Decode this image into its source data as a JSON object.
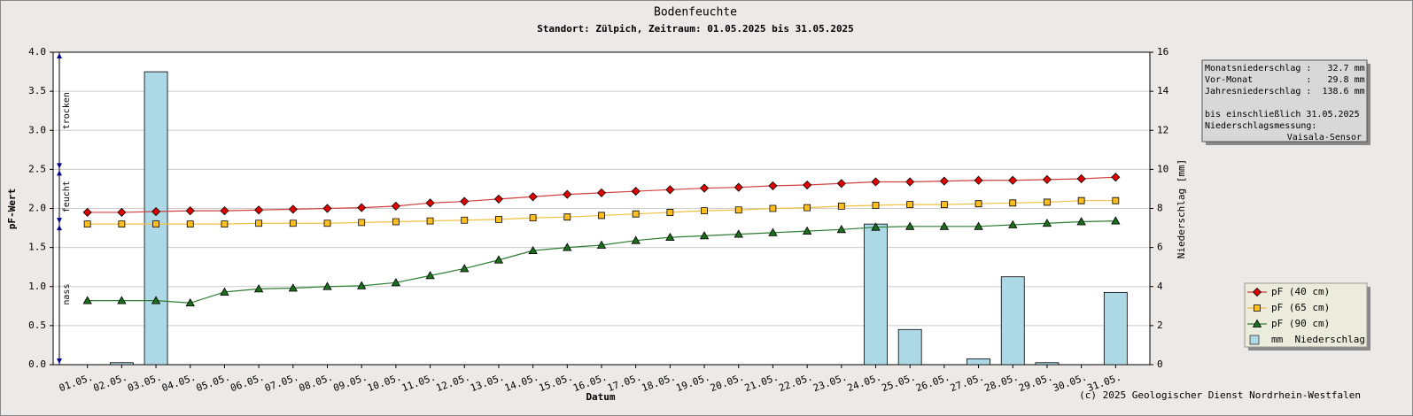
{
  "chart_data": {
    "type": "combo",
    "title": "Bodenfeuchte",
    "subtitle": "Standort: Zülpich, Zeitraum: 01.05.2025 bis 31.05.2025",
    "x_label": "Datum",
    "y_label": "pF-Wert",
    "y2_label": "Niederschlag [mm]",
    "categories": [
      "01.05.",
      "02.05.",
      "03.05.",
      "04.05.",
      "05.05.",
      "06.05.",
      "07.05.",
      "08.05.",
      "09.05.",
      "10.05.",
      "11.05.",
      "12.05.",
      "13.05.",
      "14.05.",
      "15.05.",
      "16.05.",
      "17.05.",
      "18.05.",
      "19.05.",
      "20.05.",
      "21.05.",
      "22.05.",
      "23.05.",
      "24.05.",
      "25.05.",
      "26.05.",
      "27.05.",
      "28.05.",
      "29.05.",
      "30.05.",
      "31.05."
    ],
    "ylim": [
      0,
      4
    ],
    "yticks": [
      {
        "value": 0,
        "label": "0.0"
      },
      0.5,
      {
        "value": 1,
        "label": "1.0"
      },
      1.5,
      {
        "value": 2,
        "label": "2.0"
      },
      2.5,
      {
        "value": 3,
        "label": "3.0"
      },
      3.5,
      {
        "value": 4,
        "label": "4.0"
      }
    ],
    "y2lim": [
      0,
      16
    ],
    "y2ticks": [
      0,
      2,
      4,
      6,
      8,
      10,
      12,
      14,
      16
    ],
    "grid": true,
    "zones": [
      {
        "label": "trocken",
        "from": 2.5,
        "to": 4
      },
      {
        "label": "feucht",
        "from": 1.8,
        "to": 2.5
      },
      {
        "label": "nass",
        "from": 0,
        "to": 1.8
      }
    ],
    "series": [
      {
        "name": "mm  Niederschlag",
        "type": "bar",
        "axis": "y2",
        "color": "#add8e6",
        "values": [
          0,
          0.1,
          15.0,
          0,
          0,
          0,
          0,
          0,
          0,
          0,
          0,
          0,
          0,
          0,
          0,
          0,
          0,
          0,
          0,
          0,
          0,
          0,
          0,
          7.2,
          1.8,
          0,
          0.3,
          4.5,
          0.1,
          0,
          3.7
        ]
      },
      {
        "name": "pF (40 cm)",
        "type": "line",
        "marker": "diamond",
        "color": "#e00000",
        "line_color": "#d04040",
        "values": [
          1.95,
          1.95,
          1.96,
          1.97,
          1.97,
          1.98,
          1.99,
          2.0,
          2.01,
          2.03,
          2.07,
          2.09,
          2.12,
          2.15,
          2.18,
          2.2,
          2.22,
          2.24,
          2.26,
          2.27,
          2.29,
          2.3,
          2.32,
          2.34,
          2.34,
          2.35,
          2.36,
          2.36,
          2.37,
          2.38,
          2.4
        ]
      },
      {
        "name": "pF (65 cm)",
        "type": "line",
        "marker": "square",
        "color": "#ffbf1f",
        "line_color": "#f0c040",
        "values": [
          1.8,
          1.8,
          1.8,
          1.8,
          1.8,
          1.81,
          1.81,
          1.81,
          1.82,
          1.83,
          1.84,
          1.85,
          1.86,
          1.88,
          1.89,
          1.91,
          1.93,
          1.95,
          1.97,
          1.98,
          2.0,
          2.01,
          2.03,
          2.04,
          2.05,
          2.05,
          2.06,
          2.07,
          2.08,
          2.1,
          2.1
        ]
      },
      {
        "name": "pF (90 cm)",
        "type": "line",
        "marker": "triangle",
        "color": "#1b6e1b",
        "line_color": "#2e7d32",
        "values": [
          0.82,
          0.82,
          0.82,
          0.79,
          0.93,
          0.97,
          0.98,
          1.0,
          1.01,
          1.05,
          1.14,
          1.23,
          1.34,
          1.46,
          1.5,
          1.53,
          1.59,
          1.63,
          1.65,
          1.67,
          1.69,
          1.71,
          1.73,
          1.76,
          1.77,
          1.77,
          1.77,
          1.79,
          1.81,
          1.83,
          1.84
        ]
      }
    ],
    "legend_order": [
      1,
      2,
      3,
      0
    ],
    "info_box": {
      "lines": [
        "Monatsniederschlag :   32.7 mm",
        "Vor-Monat          :   29.8 mm",
        "Jahresniederschlag :  138.6 mm"
      ],
      "note": [
        "bis einschließlich 31.05.2025",
        "Niederschlagsmessung:"
      ],
      "sensor": "Vaisala-Sensor"
    },
    "footer": "(c) 2025 Geologischer Dienst Nordrhein-Westfalen"
  }
}
